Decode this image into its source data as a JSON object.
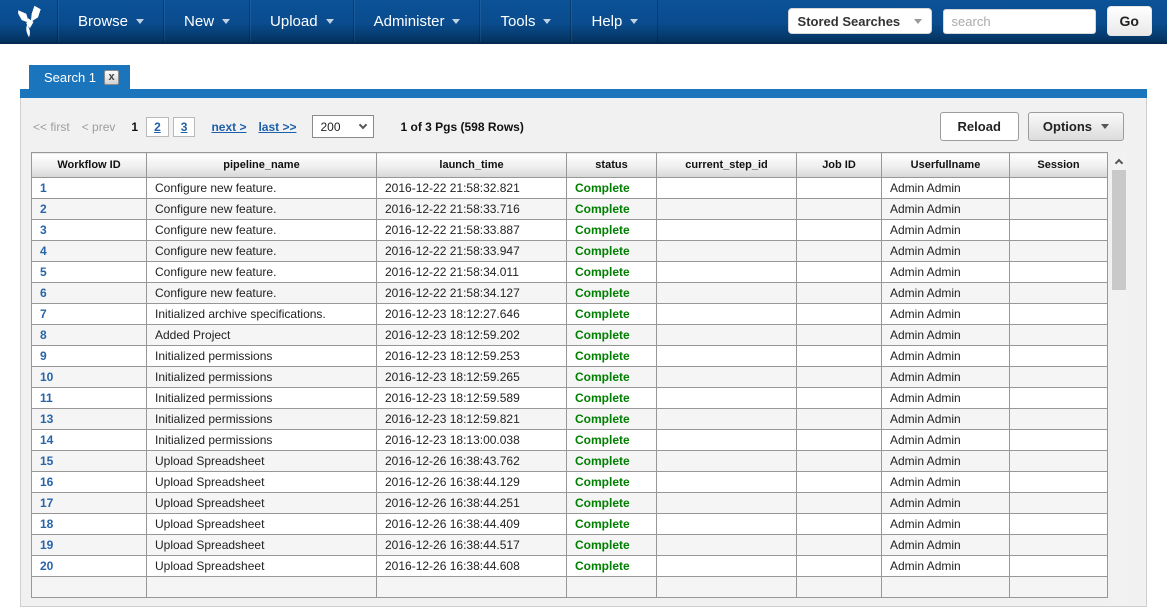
{
  "colors": {
    "accent_blue": "#1b75bc",
    "status_green": "#008000",
    "link_blue": "#2864a8",
    "pager_link": "#1d5fa9"
  },
  "navbar": {
    "menus": [
      {
        "label": "Browse"
      },
      {
        "label": "New"
      },
      {
        "label": "Upload"
      },
      {
        "label": "Administer"
      },
      {
        "label": "Tools"
      },
      {
        "label": "Help"
      }
    ],
    "stored_searches_label": "Stored Searches",
    "search_placeholder": "search",
    "go_label": "Go"
  },
  "tab": {
    "title": "Search 1",
    "close_label": "x"
  },
  "toolbar": {
    "pager": {
      "first": "<< first",
      "prev": "< prev",
      "current": "1",
      "pages": [
        "2",
        "3"
      ],
      "next": "next >",
      "last": "last >>",
      "page_size": "200",
      "summary": "1 of 3 Pgs (598 Rows)"
    },
    "reload_label": "Reload",
    "options_label": "Options"
  },
  "table": {
    "columns": [
      "Workflow ID",
      "pipeline_name",
      "launch_time",
      "status",
      "current_step_id",
      "Job ID",
      "Userfullname",
      "Session"
    ],
    "rows": [
      {
        "workflow_id": "1",
        "pipeline_name": "Configure new feature.",
        "launch_time": "2016-12-22 21:58:32.821",
        "status": "Complete",
        "current_step_id": "",
        "job_id": "",
        "userfullname": "Admin Admin",
        "session": ""
      },
      {
        "workflow_id": "2",
        "pipeline_name": "Configure new feature.",
        "launch_time": "2016-12-22 21:58:33.716",
        "status": "Complete",
        "current_step_id": "",
        "job_id": "",
        "userfullname": "Admin Admin",
        "session": ""
      },
      {
        "workflow_id": "3",
        "pipeline_name": "Configure new feature.",
        "launch_time": "2016-12-22 21:58:33.887",
        "status": "Complete",
        "current_step_id": "",
        "job_id": "",
        "userfullname": "Admin Admin",
        "session": ""
      },
      {
        "workflow_id": "4",
        "pipeline_name": "Configure new feature.",
        "launch_time": "2016-12-22 21:58:33.947",
        "status": "Complete",
        "current_step_id": "",
        "job_id": "",
        "userfullname": "Admin Admin",
        "session": ""
      },
      {
        "workflow_id": "5",
        "pipeline_name": "Configure new feature.",
        "launch_time": "2016-12-22 21:58:34.011",
        "status": "Complete",
        "current_step_id": "",
        "job_id": "",
        "userfullname": "Admin Admin",
        "session": ""
      },
      {
        "workflow_id": "6",
        "pipeline_name": "Configure new feature.",
        "launch_time": "2016-12-22 21:58:34.127",
        "status": "Complete",
        "current_step_id": "",
        "job_id": "",
        "userfullname": "Admin Admin",
        "session": ""
      },
      {
        "workflow_id": "7",
        "pipeline_name": "Initialized archive specifications.",
        "launch_time": "2016-12-23 18:12:27.646",
        "status": "Complete",
        "current_step_id": "",
        "job_id": "",
        "userfullname": "Admin Admin",
        "session": ""
      },
      {
        "workflow_id": "8",
        "pipeline_name": "Added Project",
        "launch_time": "2016-12-23 18:12:59.202",
        "status": "Complete",
        "current_step_id": "",
        "job_id": "",
        "userfullname": "Admin Admin",
        "session": ""
      },
      {
        "workflow_id": "9",
        "pipeline_name": "Initialized permissions",
        "launch_time": "2016-12-23 18:12:59.253",
        "status": "Complete",
        "current_step_id": "",
        "job_id": "",
        "userfullname": "Admin Admin",
        "session": ""
      },
      {
        "workflow_id": "10",
        "pipeline_name": "Initialized permissions",
        "launch_time": "2016-12-23 18:12:59.265",
        "status": "Complete",
        "current_step_id": "",
        "job_id": "",
        "userfullname": "Admin Admin",
        "session": ""
      },
      {
        "workflow_id": "11",
        "pipeline_name": "Initialized permissions",
        "launch_time": "2016-12-23 18:12:59.589",
        "status": "Complete",
        "current_step_id": "",
        "job_id": "",
        "userfullname": "Admin Admin",
        "session": ""
      },
      {
        "workflow_id": "13",
        "pipeline_name": "Initialized permissions",
        "launch_time": "2016-12-23 18:12:59.821",
        "status": "Complete",
        "current_step_id": "",
        "job_id": "",
        "userfullname": "Admin Admin",
        "session": ""
      },
      {
        "workflow_id": "14",
        "pipeline_name": "Initialized permissions",
        "launch_time": "2016-12-23 18:13:00.038",
        "status": "Complete",
        "current_step_id": "",
        "job_id": "",
        "userfullname": "Admin Admin",
        "session": ""
      },
      {
        "workflow_id": "15",
        "pipeline_name": "Upload Spreadsheet",
        "launch_time": "2016-12-26 16:38:43.762",
        "status": "Complete",
        "current_step_id": "",
        "job_id": "",
        "userfullname": "Admin Admin",
        "session": ""
      },
      {
        "workflow_id": "16",
        "pipeline_name": "Upload Spreadsheet",
        "launch_time": "2016-12-26 16:38:44.129",
        "status": "Complete",
        "current_step_id": "",
        "job_id": "",
        "userfullname": "Admin Admin",
        "session": ""
      },
      {
        "workflow_id": "17",
        "pipeline_name": "Upload Spreadsheet",
        "launch_time": "2016-12-26 16:38:44.251",
        "status": "Complete",
        "current_step_id": "",
        "job_id": "",
        "userfullname": "Admin Admin",
        "session": ""
      },
      {
        "workflow_id": "18",
        "pipeline_name": "Upload Spreadsheet",
        "launch_time": "2016-12-26 16:38:44.409",
        "status": "Complete",
        "current_step_id": "",
        "job_id": "",
        "userfullname": "Admin Admin",
        "session": ""
      },
      {
        "workflow_id": "19",
        "pipeline_name": "Upload Spreadsheet",
        "launch_time": "2016-12-26 16:38:44.517",
        "status": "Complete",
        "current_step_id": "",
        "job_id": "",
        "userfullname": "Admin Admin",
        "session": ""
      },
      {
        "workflow_id": "20",
        "pipeline_name": "Upload Spreadsheet",
        "launch_time": "2016-12-26 16:38:44.608",
        "status": "Complete",
        "current_step_id": "",
        "job_id": "",
        "userfullname": "Admin Admin",
        "session": ""
      }
    ]
  }
}
